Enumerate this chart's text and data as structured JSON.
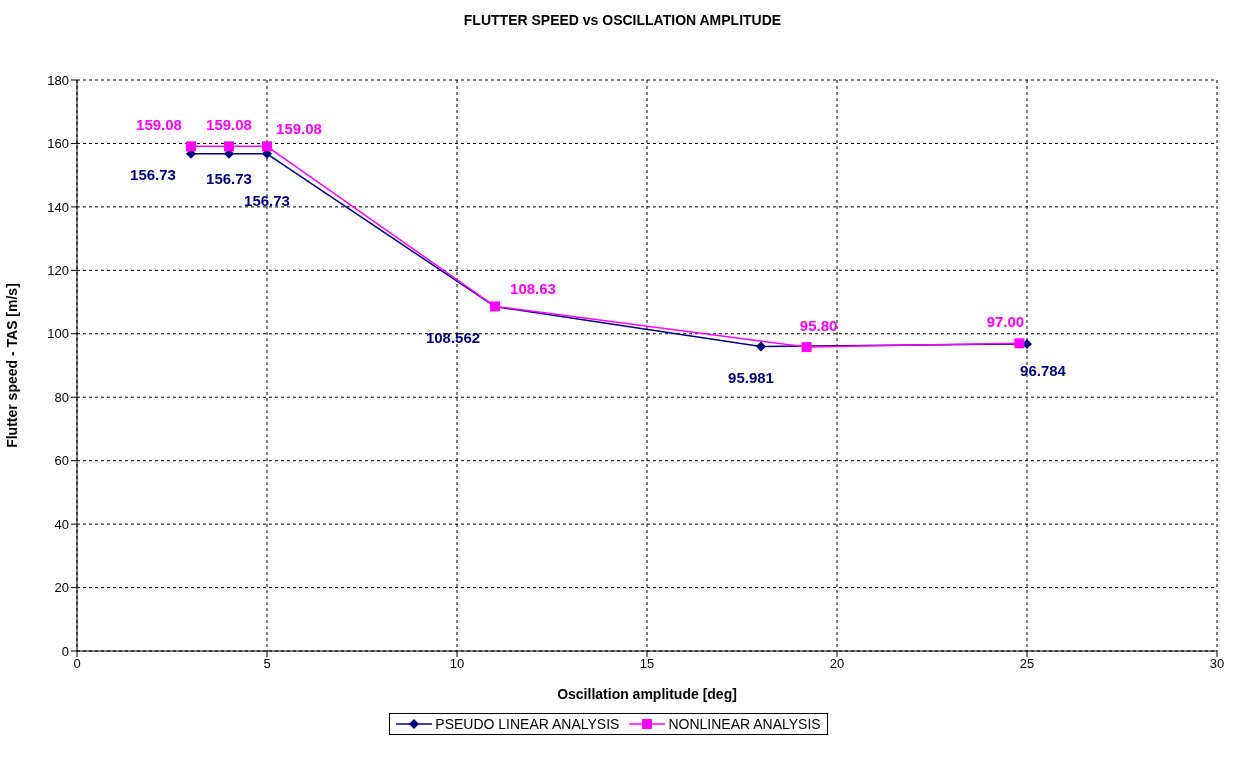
{
  "chart_data": {
    "type": "line",
    "title": "FLUTTER SPEED vs OSCILLATION AMPLITUDE",
    "xlabel": "Oscillation amplitude [deg]",
    "ylabel": "Flutter speed - TAS [m/s]",
    "xlim": [
      0,
      30
    ],
    "xticks": [
      0,
      5,
      10,
      15,
      20,
      25,
      30
    ],
    "ylim": [
      0,
      180
    ],
    "yticks": [
      0,
      20,
      40,
      60,
      80,
      100,
      120,
      140,
      160,
      180
    ],
    "grid": true,
    "legend": "bottom",
    "series": [
      {
        "name": "PSEUDO LINEAR ANALYSIS",
        "color": "#000080",
        "marker": "diamond",
        "x": [
          3,
          4,
          5,
          11,
          18,
          25
        ],
        "values": [
          156.73,
          156.73,
          156.73,
          108.562,
          95.981,
          96.784
        ],
        "value_labels": [
          "156.73",
          "156.73",
          "156.73",
          "108.562",
          "95.981",
          "96.784"
        ]
      },
      {
        "name": "NONLINEAR ANALYSIS",
        "color": "#ff00ff",
        "marker": "square",
        "x": [
          3,
          4,
          5,
          11,
          19.2,
          24.8
        ],
        "values": [
          159.08,
          159.08,
          159.08,
          108.63,
          95.8,
          97.0
        ],
        "value_labels": [
          "159.08",
          "159.08",
          "159.08",
          "108.63",
          "95.80",
          "97.00"
        ]
      }
    ]
  }
}
